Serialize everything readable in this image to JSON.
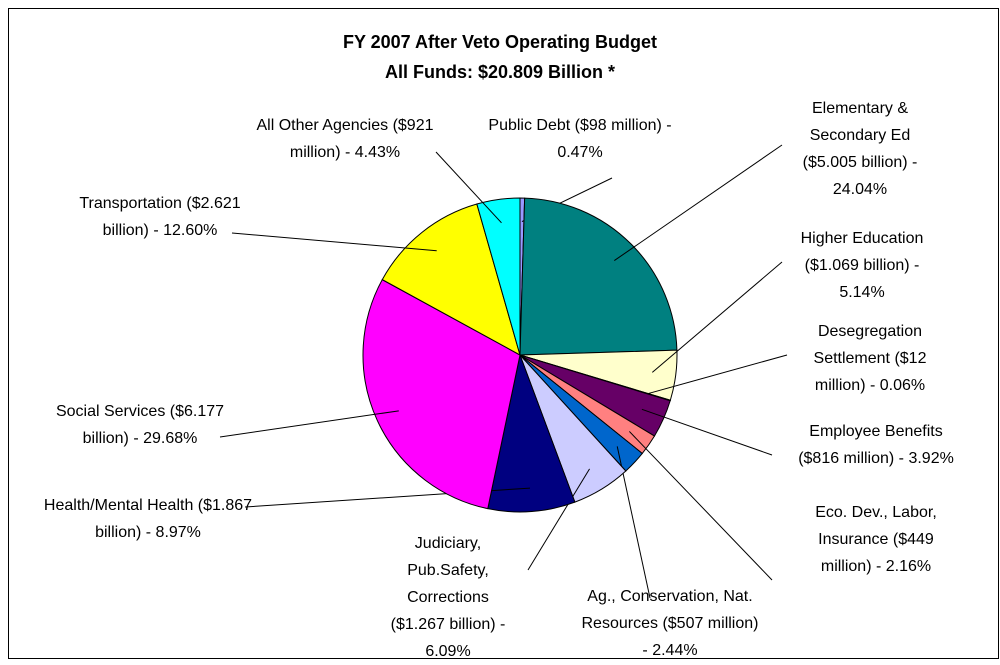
{
  "chart_data": {
    "type": "pie",
    "title": "FY 2007 After Veto Operating Budget",
    "subtitle": "All Funds: $20.809 Billion *",
    "categories": [
      "Public Debt",
      "Elementary & Secondary Ed",
      "Higher Education",
      "Desegregation Settlement",
      "Employee Benefits",
      "Eco. Dev., Labor, Insurance",
      "Ag., Conservation, Nat. Resources",
      "Judiciary, Pub.Safety, Corrections",
      "Health/Mental Health",
      "Social Services",
      "Transportation",
      "All Other Agencies"
    ],
    "values": [
      0.47,
      24.04,
      5.14,
      0.06,
      3.92,
      2.16,
      2.44,
      6.09,
      8.97,
      29.68,
      12.6,
      4.43
    ],
    "value_labels": [
      "($98 million) - 0.47%",
      "($5.005 billion) - 24.04%",
      "($1.069 billion) - 5.14%",
      "($12 million) - 0.06%",
      "($816 million) - 3.92%",
      "($449 million) - 2.16%",
      "($507 million) - 2.44%",
      "($1.267 billion) - 6.09%",
      "($1.867 billion) - 8.97%",
      "($6.177 billion) - 29.68%",
      "($2.621 billion) - 12.60%",
      "($921 million) - 4.43%"
    ],
    "colors": [
      "#9999FF",
      "#008080",
      "#FFFFCC",
      "#993366",
      "#660066",
      "#FF8080",
      "#0066CC",
      "#CCCCFF",
      "#000080",
      "#FF00FF",
      "#FFFF00",
      "#00FFFF"
    ]
  }
}
